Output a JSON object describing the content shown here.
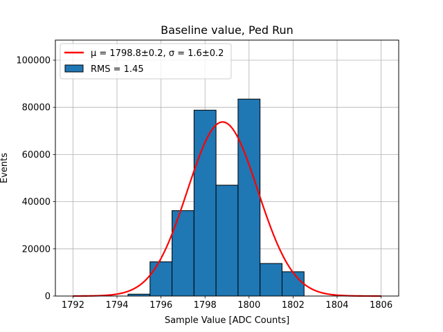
{
  "chart_data": {
    "type": "bar",
    "title": "Baseline value, Ped Run",
    "xlabel": "Sample Value [ADC Counts]",
    "ylabel": "Events",
    "xlim": [
      1791.2,
      1806.8
    ],
    "ylim": [
      0,
      108500
    ],
    "grid": true,
    "legend_position": "top-left",
    "x_ticks": [
      1792,
      1794,
      1796,
      1798,
      1800,
      1802,
      1804,
      1806
    ],
    "x_tick_labels": [
      "1792",
      "1794",
      "1796",
      "1798",
      "1800",
      "1802",
      "1804",
      "1806"
    ],
    "y_ticks": [
      0,
      20000,
      40000,
      60000,
      80000,
      100000
    ],
    "y_tick_labels": [
      "0",
      "20000",
      "40000",
      "60000",
      "80000",
      "100000"
    ],
    "histogram": {
      "bin_edges": [
        1794.5,
        1795.5,
        1796.5,
        1797.5,
        1798.5,
        1799.5,
        1800.5,
        1801.5,
        1802.5
      ],
      "counts": [
        800,
        14500,
        36200,
        78800,
        47000,
        83500,
        13800,
        10300
      ],
      "color": "#1f77b4",
      "edge_color": "#000000",
      "legend_label": "RMS = 1.45"
    },
    "fit": {
      "type": "gaussian",
      "mu": 1798.8,
      "sigma": 1.6,
      "amplitude": 73800,
      "x_range": [
        1792,
        1806
      ],
      "color": "#ff0000",
      "legend_label": "μ = 1798.8±0.2, σ = 1.6±0.2"
    }
  }
}
